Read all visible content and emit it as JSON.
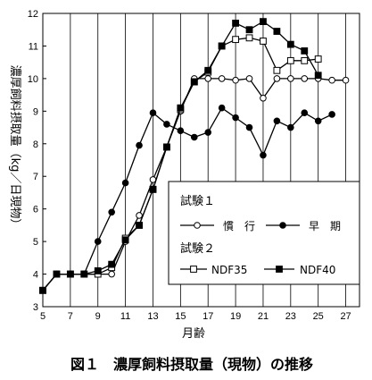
{
  "caption": "図１　濃厚飼料摂取量（現物）の推移",
  "chart_data": {
    "type": "line",
    "xlabel": "月齢",
    "ylabel": "濃厚飼料摂取量（kg／日現物）",
    "xlim": [
      5,
      28
    ],
    "ylim": [
      3,
      12
    ],
    "x_ticks": [
      5,
      7,
      9,
      11,
      13,
      15,
      17,
      19,
      21,
      23,
      25,
      27
    ],
    "y_ticks": [
      3,
      4,
      5,
      6,
      7,
      8,
      9,
      10,
      11,
      12
    ],
    "grid": "vertical lines at each x tick",
    "legend_position": "bottom-right",
    "legend": {
      "group1": "試験１",
      "group2": "試験２"
    },
    "series": [
      {
        "name": "慣　行",
        "group": "試験１",
        "marker": "open-circle",
        "x": [
          5,
          6,
          7,
          8,
          9,
          10,
          11,
          12,
          13,
          14,
          15,
          16,
          17,
          18,
          19,
          20,
          21,
          22,
          23,
          24,
          25,
          26,
          27
        ],
        "values": [
          3.5,
          4.0,
          4.0,
          4.0,
          4.0,
          4.0,
          5.0,
          5.8,
          6.9,
          7.9,
          9.0,
          10.0,
          10.0,
          10.0,
          9.95,
          10.0,
          9.4,
          10.0,
          10.0,
          10.0,
          10.0,
          9.95,
          9.95
        ]
      },
      {
        "name": "早　期",
        "group": "試験１",
        "marker": "filled-circle",
        "x": [
          5,
          6,
          7,
          8,
          9,
          10,
          11,
          12,
          13,
          14,
          15,
          16,
          17,
          18,
          19,
          20,
          21,
          22,
          23,
          24,
          25,
          26
        ],
        "values": [
          3.5,
          4.0,
          4.0,
          4.0,
          5.0,
          5.9,
          6.8,
          7.95,
          8.95,
          8.6,
          8.4,
          8.2,
          8.35,
          9.1,
          8.8,
          8.5,
          7.65,
          8.7,
          8.5,
          8.95,
          8.7,
          8.9
        ]
      },
      {
        "name": "NDF35",
        "group": "試験２",
        "marker": "open-square",
        "x": [
          5,
          6,
          7,
          8,
          9,
          10,
          11,
          12,
          13,
          14,
          15,
          16,
          17,
          18,
          19,
          20,
          21,
          22,
          23,
          24,
          25
        ],
        "values": [
          3.5,
          4.0,
          4.0,
          4.0,
          4.0,
          4.2,
          5.1,
          5.5,
          6.6,
          7.9,
          9.05,
          9.9,
          10.2,
          11.0,
          11.2,
          11.25,
          11.15,
          10.25,
          10.55,
          10.55,
          10.6
        ]
      },
      {
        "name": "NDF40",
        "group": "試験２",
        "marker": "filled-square",
        "x": [
          5,
          6,
          7,
          8,
          9,
          10,
          11,
          12,
          13,
          14,
          15,
          16,
          17,
          18,
          19,
          20,
          21,
          22,
          23,
          24,
          25
        ],
        "values": [
          3.5,
          4.0,
          4.0,
          4.0,
          4.1,
          4.3,
          5.05,
          5.5,
          6.6,
          7.9,
          9.1,
          9.9,
          10.25,
          11.0,
          11.7,
          11.5,
          11.75,
          11.45,
          11.05,
          10.85,
          10.1
        ]
      }
    ]
  }
}
